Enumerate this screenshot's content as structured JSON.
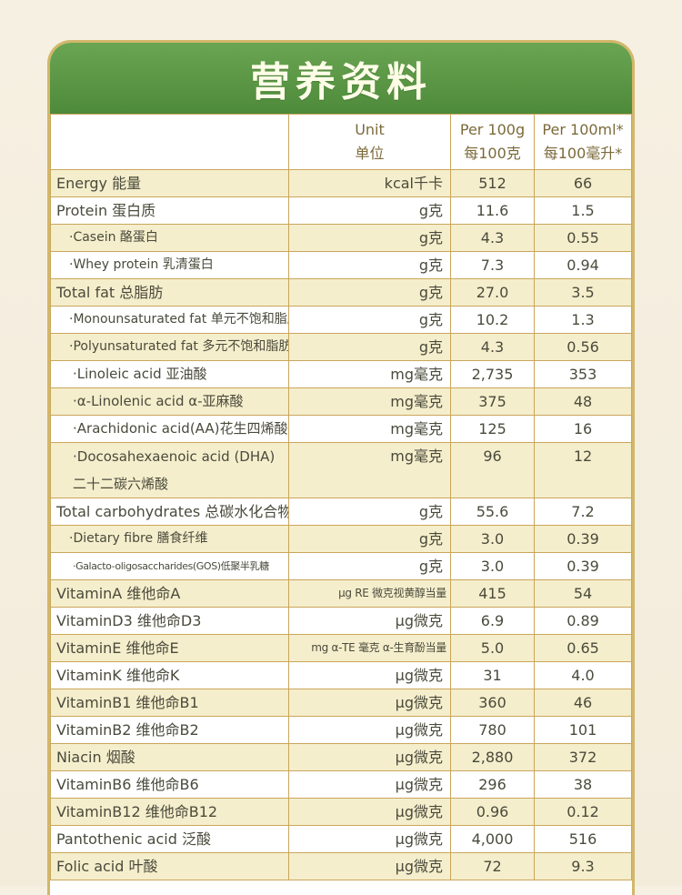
{
  "title": "营养资料",
  "headers": {
    "unit_en": "Unit",
    "unit_cn": "单位",
    "per100g_en": "Per 100g",
    "per100g_cn": "每100克",
    "per100ml_en": "Per 100ml*",
    "per100ml_cn": "每100毫升*"
  },
  "rows": [
    {
      "name": "Energy 能量",
      "unit": "kcal千卡",
      "per100g": "512",
      "per100ml": "66"
    },
    {
      "name": "Protein 蛋白质",
      "unit": "g克",
      "per100g": "11.6",
      "per100ml": "1.5"
    },
    {
      "name": "·Casein 酪蛋白",
      "unit": "g克",
      "per100g": "4.3",
      "per100ml": "0.55"
    },
    {
      "name": "·Whey protein 乳清蛋白",
      "unit": "g克",
      "per100g": "7.3",
      "per100ml": "0.94"
    },
    {
      "name": "Total fat 总脂肪",
      "unit": "g克",
      "per100g": "27.0",
      "per100ml": "3.5"
    },
    {
      "name": "·Monounsaturated fat 单元不饱和脂肪",
      "unit": "g克",
      "per100g": "10.2",
      "per100ml": "1.3"
    },
    {
      "name": "·Polyunsaturated fat 多元不饱和脂肪",
      "unit": "g克",
      "per100g": "4.3",
      "per100ml": "0.56"
    },
    {
      "name": "·Linoleic acid 亚油酸",
      "unit": "mg毫克",
      "per100g": "2,735",
      "per100ml": "353"
    },
    {
      "name": "·α-Linolenic acid α-亚麻酸",
      "unit": "mg毫克",
      "per100g": "375",
      "per100ml": "48"
    },
    {
      "name": "·Arachidonic acid(AA)花生四烯酸",
      "unit": "mg毫克",
      "per100g": "125",
      "per100ml": "16"
    },
    {
      "name": "·Docosahexaenoic acid (DHA)",
      "name2": "二十二碳六烯酸",
      "unit": "mg毫克",
      "per100g": "96",
      "per100ml": "12"
    },
    {
      "name": "Total carbohydrates 总碳水化合物",
      "unit": "g克",
      "per100g": "55.6",
      "per100ml": "7.2"
    },
    {
      "name": "·Dietary fibre 膳食纤维",
      "unit": "g克",
      "per100g": "3.0",
      "per100ml": "0.39"
    },
    {
      "name": "·Galacto-oligosaccharides(GOS)低聚半乳糖",
      "unit": "g克",
      "per100g": "3.0",
      "per100ml": "0.39"
    },
    {
      "name": "VitaminA 维他命A",
      "unit": "μg RE 微克视黄醇当量",
      "per100g": "415",
      "per100ml": "54"
    },
    {
      "name": "VitaminD3 维他命D3",
      "unit": "μg微克",
      "per100g": "6.9",
      "per100ml": "0.89"
    },
    {
      "name": "VitaminE 维他命E",
      "unit": "mg α-TE 毫克 α-生育酚当量",
      "per100g": "5.0",
      "per100ml": "0.65"
    },
    {
      "name": "VitaminK 维他命K",
      "unit": "μg微克",
      "per100g": "31",
      "per100ml": "4.0"
    },
    {
      "name": "VitaminB1 维他命B1",
      "unit": "μg微克",
      "per100g": "360",
      "per100ml": "46"
    },
    {
      "name": "VitaminB2 维他命B2",
      "unit": "μg微克",
      "per100g": "780",
      "per100ml": "101"
    },
    {
      "name": "Niacin 烟酸",
      "unit": "μg微克",
      "per100g": "2,880",
      "per100ml": "372"
    },
    {
      "name": "VitaminB6 维他命B6",
      "unit": "μg微克",
      "per100g": "296",
      "per100ml": "38"
    },
    {
      "name": "VitaminB12 维他命B12",
      "unit": "μg微克",
      "per100g": "0.96",
      "per100ml": "0.12"
    },
    {
      "name": "Pantothenic acid 泛酸",
      "unit": "μg微克",
      "per100g": "4,000",
      "per100ml": "516"
    },
    {
      "name": "Folic acid 叶酸",
      "unit": "μg微克",
      "per100g": "72",
      "per100ml": "9.3"
    }
  ]
}
